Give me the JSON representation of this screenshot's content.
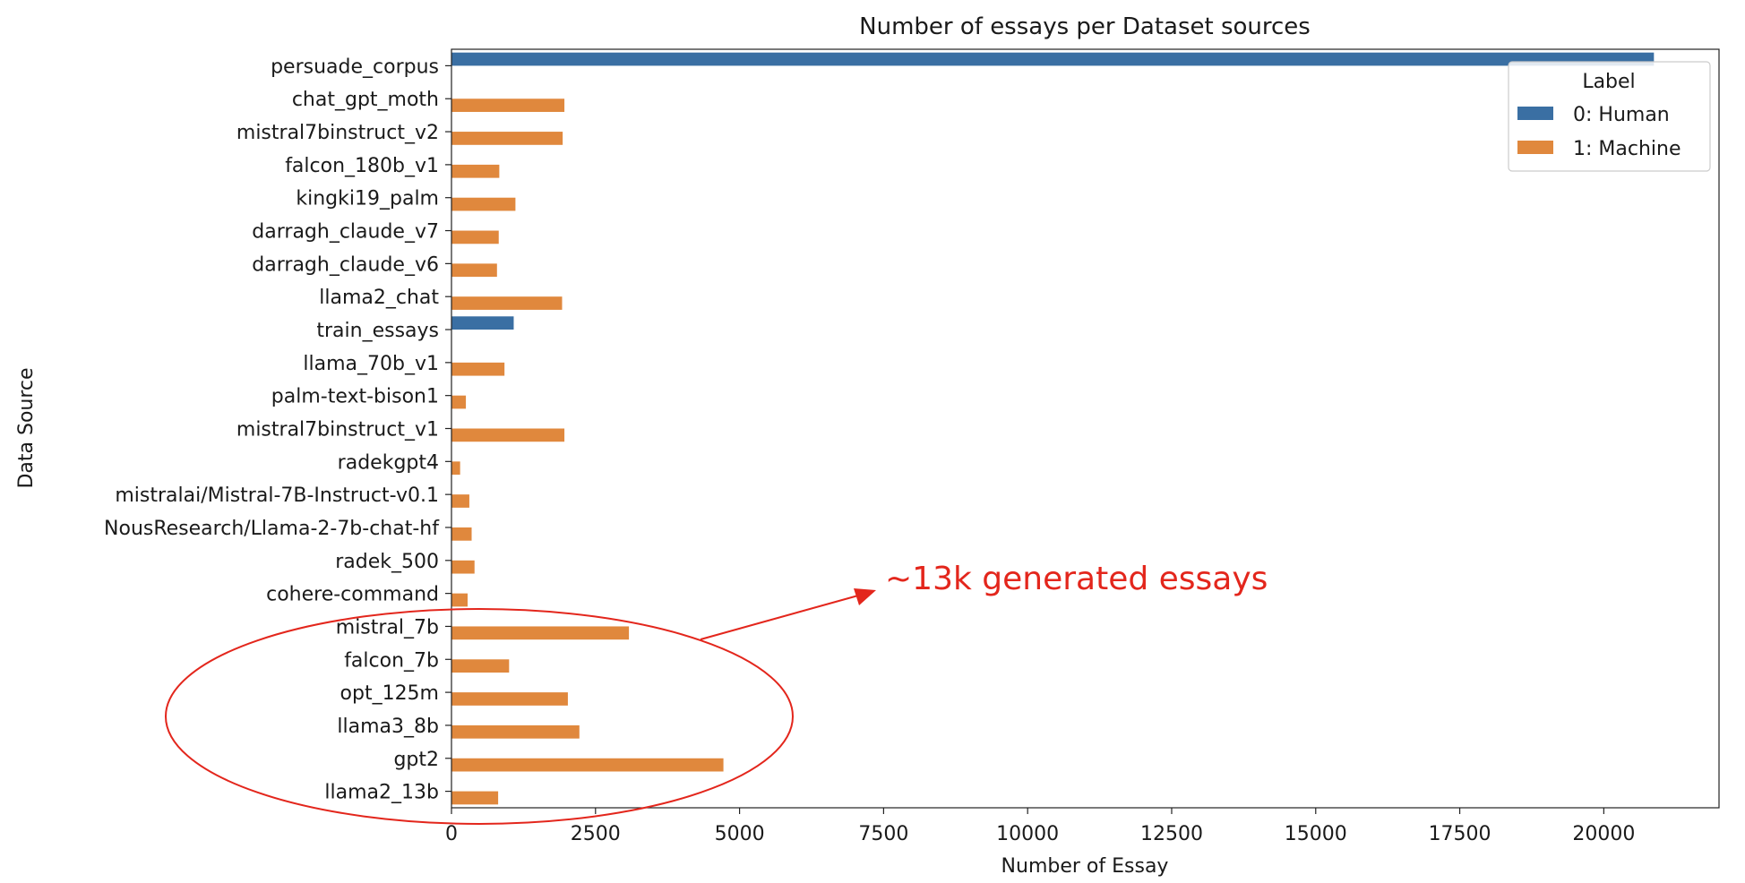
{
  "chart_data": {
    "type": "bar",
    "orientation": "horizontal",
    "title": "Number of essays per Dataset sources",
    "xlabel": "Number of Essay",
    "ylabel": "Data Source",
    "xlim": [
      0,
      22000
    ],
    "xticks": [
      0,
      2500,
      5000,
      7500,
      10000,
      12500,
      15000,
      17500,
      20000
    ],
    "categories": [
      "persuade_corpus",
      "chat_gpt_moth",
      "mistral7binstruct_v2",
      "falcon_180b_v1",
      "kingki19_palm",
      "darragh_claude_v7",
      "darragh_claude_v6",
      "llama2_chat",
      "train_essays",
      "llama_70b_v1",
      "palm-text-bison1",
      "mistral7binstruct_v1",
      "radekgpt4",
      "mistralai/Mistral-7B-Instruct-v0.1",
      "NousResearch/Llama-2-7b-chat-hf",
      "radek_500",
      "cohere-command",
      "mistral_7b",
      "falcon_7b",
      "opt_125m",
      "llama3_8b",
      "gpt2",
      "llama2_13b"
    ],
    "series": [
      {
        "name": "0: Human",
        "color": "#3a6fa3",
        "values": [
          20870,
          0,
          0,
          0,
          0,
          0,
          0,
          0,
          1080,
          0,
          0,
          0,
          0,
          0,
          0,
          0,
          0,
          0,
          0,
          0,
          0,
          0,
          0
        ]
      },
      {
        "name": "1: Machine",
        "color": "#e0883d",
        "values": [
          0,
          1960,
          1930,
          830,
          1110,
          820,
          790,
          1920,
          0,
          920,
          250,
          1960,
          150,
          310,
          350,
          400,
          280,
          3080,
          1000,
          2020,
          2220,
          4720,
          810
        ]
      }
    ],
    "legend": {
      "title": "Label",
      "position": "top-right"
    },
    "grid": false
  },
  "annotation": {
    "text": "~13k generated essays",
    "color": "#e3261c"
  }
}
